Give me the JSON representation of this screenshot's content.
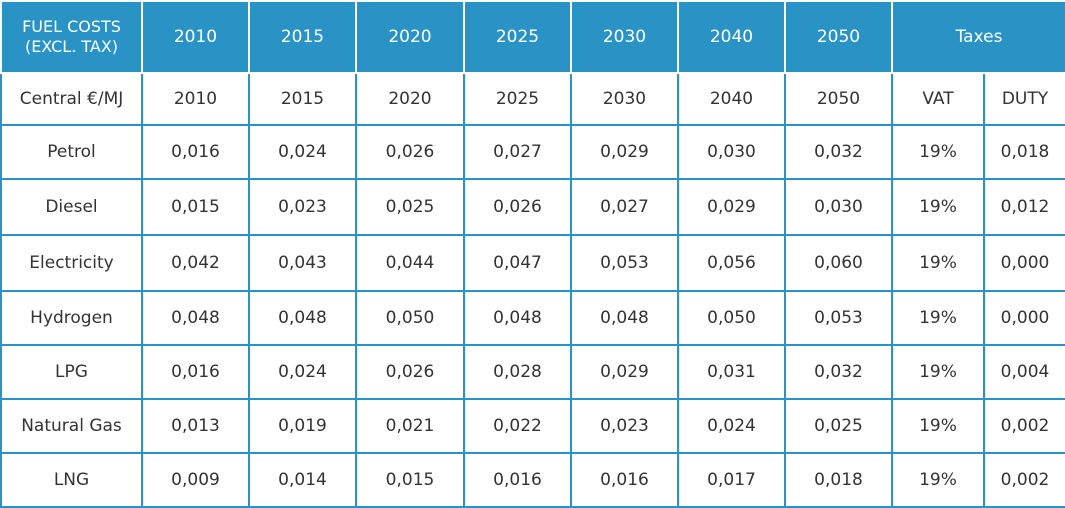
{
  "header": {
    "first_line1": "FUEL COSTS",
    "first_line2": "(EXCL. TAX)",
    "years": [
      "2010",
      "2015",
      "2020",
      "2025",
      "2030",
      "2040",
      "2050"
    ],
    "taxes": "Taxes"
  },
  "subheader": {
    "label": "Central €/MJ",
    "years": [
      "2010",
      "2015",
      "2020",
      "2025",
      "2030",
      "2040",
      "2050"
    ],
    "vat": "VAT",
    "duty": "DUTY"
  },
  "rows": [
    {
      "fuel": "Petrol",
      "values": [
        "0,016",
        "0,024",
        "0,026",
        "0,027",
        "0,029",
        "0,030",
        "0,032"
      ],
      "vat": "19%",
      "duty": "0,018"
    },
    {
      "fuel": "Diesel",
      "values": [
        "0,015",
        "0,023",
        "0,025",
        "0,026",
        "0,027",
        "0,029",
        "0,030"
      ],
      "vat": "19%",
      "duty": "0,012"
    },
    {
      "fuel": "Electricity",
      "values": [
        "0,042",
        "0,043",
        "0,044",
        "0,047",
        "0,053",
        "0,056",
        "0,060"
      ],
      "vat": "19%",
      "duty": "0,000"
    },
    {
      "fuel": "Hydrogen",
      "values": [
        "0,048",
        "0,048",
        "0,050",
        "0,048",
        "0,048",
        "0,050",
        "0,053"
      ],
      "vat": "19%",
      "duty": "0,000"
    },
    {
      "fuel": "LPG",
      "values": [
        "0,016",
        "0,024",
        "0,026",
        "0,028",
        "0,029",
        "0,031",
        "0,032"
      ],
      "vat": "19%",
      "duty": "0,004"
    },
    {
      "fuel": "Natural Gas",
      "values": [
        "0,013",
        "0,019",
        "0,021",
        "0,022",
        "0,023",
        "0,024",
        "0,025"
      ],
      "vat": "19%",
      "duty": "0,002"
    },
    {
      "fuel": "LNG",
      "values": [
        "0,009",
        "0,014",
        "0,015",
        "0,016",
        "0,016",
        "0,017",
        "0,018"
      ],
      "vat": "19%",
      "duty": "0,002"
    }
  ]
}
